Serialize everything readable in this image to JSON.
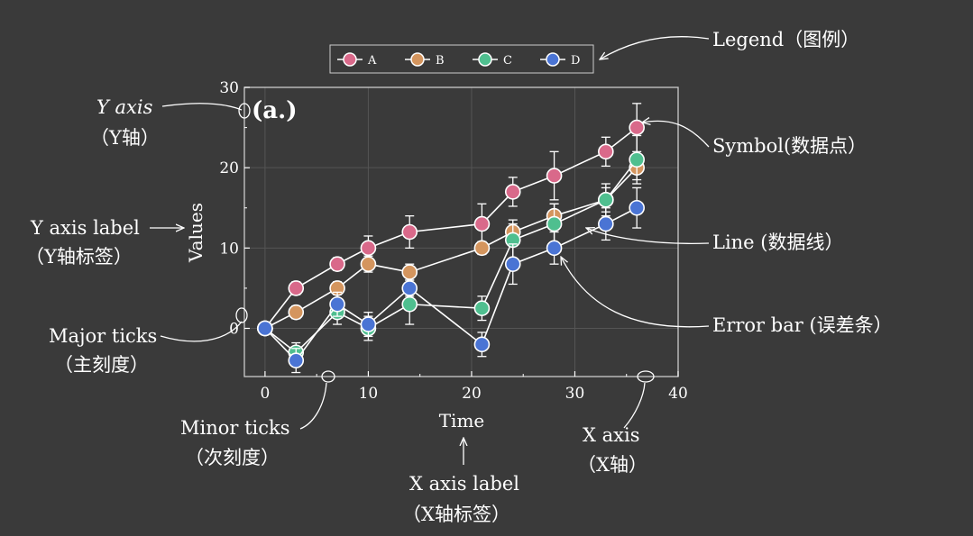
{
  "chart_data": {
    "type": "line",
    "panel_label": "(a.)",
    "xlabel": "Time",
    "ylabel": "Values",
    "xlim": [
      -2,
      40
    ],
    "ylim": [
      -6,
      30
    ],
    "x_ticks": [
      0,
      10,
      20,
      30,
      40
    ],
    "y_ticks": [
      0,
      10,
      20,
      30
    ],
    "grid": true,
    "legend_placement": "top-center",
    "series": [
      {
        "name": "A",
        "color": "#d9698a",
        "x": [
          0,
          3,
          7,
          10,
          14,
          21,
          24,
          28,
          33,
          36
        ],
        "y": [
          0,
          5,
          8,
          10,
          12,
          13,
          17,
          19,
          22,
          25
        ],
        "err": [
          0,
          0.8,
          0.8,
          1.5,
          2.0,
          2.5,
          1.8,
          3.0,
          1.8,
          3.0
        ]
      },
      {
        "name": "B",
        "color": "#d4955e",
        "x": [
          0,
          3,
          7,
          10,
          14,
          21,
          24,
          28,
          33,
          36
        ],
        "y": [
          0,
          2,
          5,
          8,
          7,
          10,
          12,
          14,
          16,
          20
        ],
        "err": [
          0,
          0.8,
          0.8,
          1.0,
          1.0,
          0.8,
          1.0,
          1.5,
          1.5,
          1.5
        ]
      },
      {
        "name": "C",
        "color": "#4fbf8f",
        "x": [
          0,
          3,
          7,
          10,
          14,
          21,
          24,
          28,
          33,
          36
        ],
        "y": [
          0,
          -3,
          2,
          0,
          3,
          2.5,
          11,
          13,
          16,
          21
        ],
        "err": [
          0,
          1.2,
          1.5,
          1.5,
          2.5,
          1.5,
          2.5,
          2.5,
          2.0,
          3.0
        ]
      },
      {
        "name": "D",
        "color": "#4a74d4",
        "x": [
          0,
          3,
          7,
          10,
          14,
          21,
          24,
          28,
          33,
          36
        ],
        "y": [
          0,
          -4,
          3,
          0.5,
          5,
          -2,
          8,
          10,
          13,
          15
        ],
        "err": [
          0,
          1.5,
          1.5,
          1.5,
          1.0,
          1.5,
          2.5,
          2.0,
          2.0,
          2.5
        ]
      }
    ]
  },
  "annotations": {
    "legend": "Legend（图例）",
    "y_axis_1": "Y axis",
    "y_axis_2": "（Y轴）",
    "symbol": "Symbol(数据点）",
    "y_axis_label_1": "Y axis label",
    "y_axis_label_2": "（Y轴标签）",
    "line": "Line (数据线）",
    "major_ticks_1": "Major ticks",
    "major_ticks_2": "（主刻度）",
    "error_bar": "Error bar (误差条）",
    "minor_ticks_1": "Minor ticks",
    "minor_ticks_2": "（次刻度）",
    "x_axis_1": "X axis",
    "x_axis_2": "（X轴）",
    "x_axis_label_1": "X axis label",
    "x_axis_label_2": "（X轴标签）"
  },
  "colors": {
    "background": "#3a3a3a",
    "foreground": "#ffffff",
    "grid": "#555555"
  }
}
